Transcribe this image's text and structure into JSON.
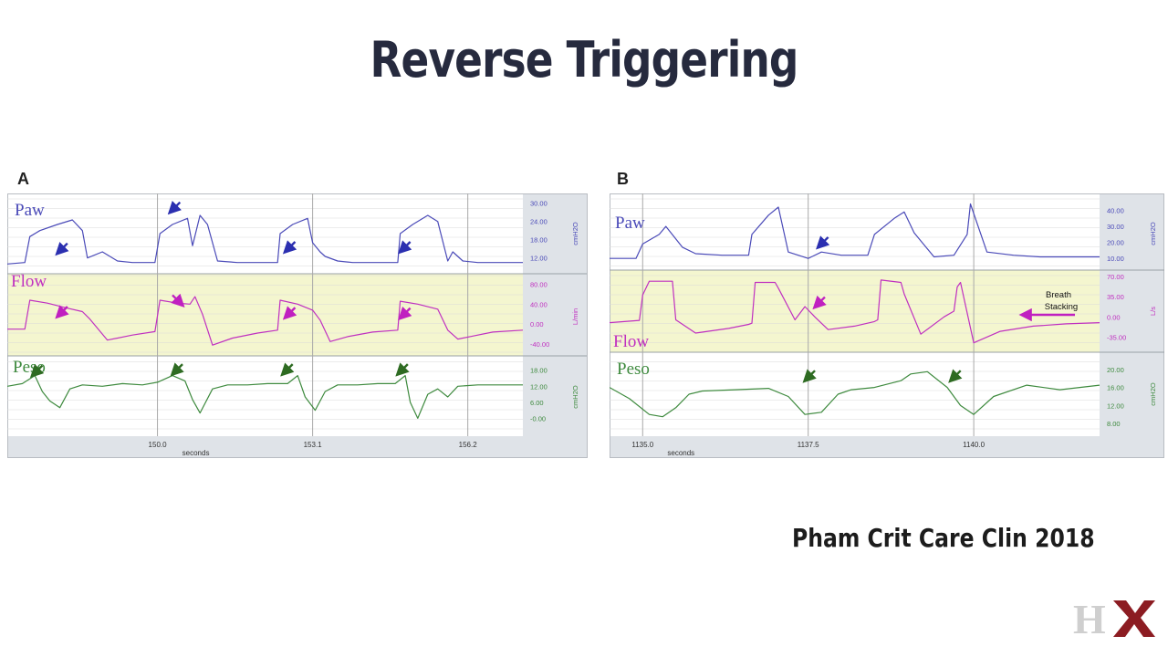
{
  "slide": {
    "title": "Reverse Triggering",
    "citation": "Pham Crit Care Clin 2018",
    "logo_text": "HX"
  },
  "colors": {
    "paw": "#4a4ab8",
    "flow": "#c030c0",
    "peso": "#3e8a3e",
    "arrow_paw": "#2b2fb0",
    "arrow_flow": "#c020c0",
    "arrow_peso": "#2e6b22",
    "flow_background": "#f4f6cf",
    "axis_panel": "#dfe3e8",
    "title": "#262a3e"
  },
  "chart_data": [
    {
      "type": "line",
      "panel": "A",
      "xlabel": "seconds",
      "x_ticks": [
        150.0,
        153.1,
        156.2
      ],
      "x_tick_labels": [
        "150.0",
        "153.1",
        "156.2"
      ],
      "series": [
        {
          "name": "Paw",
          "unit": "cmH2O",
          "ylim": [
            8,
            32
          ],
          "tick_labels": [
            "30.00",
            "24.00",
            "18.00",
            "12.00"
          ],
          "ticks": [
            30,
            24,
            18,
            12
          ],
          "x": [
            147.0,
            147.35,
            147.45,
            147.65,
            148.0,
            148.3,
            148.5,
            148.6,
            148.9,
            149.2,
            149.5,
            149.95,
            150.05,
            150.3,
            150.6,
            150.7,
            150.85,
            151.0,
            151.2,
            151.6,
            152.0,
            152.4,
            152.45,
            152.7,
            153.0,
            153.1,
            153.25,
            153.35,
            153.6,
            153.9,
            154.2,
            154.6,
            154.8,
            154.85,
            155.1,
            155.4,
            155.6,
            155.8,
            155.9,
            156.1,
            156.4,
            156.8,
            157.0,
            157.3
          ],
          "y": [
            10.0,
            10.5,
            19,
            21,
            23,
            24.5,
            21,
            12,
            14,
            11,
            10.5,
            10.5,
            20,
            23,
            25,
            16,
            26,
            23,
            11,
            10.5,
            10.5,
            10.5,
            20,
            23,
            25,
            17,
            14,
            12.5,
            11,
            10.5,
            10.5,
            10.5,
            10.5,
            20,
            23,
            26,
            24,
            11,
            14,
            11,
            10.5,
            10.5,
            10.5,
            10.5
          ],
          "arrows_at": [
            [
              148.0,
              13.5
            ],
            [
              150.25,
              27
            ],
            [
              152.55,
              14
            ],
            [
              154.85,
              14
            ]
          ]
        },
        {
          "name": "Flow",
          "unit": "L/min",
          "ylim": [
            -60,
            90
          ],
          "tick_labels": [
            "80.00",
            "40.00",
            "0.00",
            "-40.00"
          ],
          "ticks": [
            80,
            40,
            0,
            -40
          ],
          "x": [
            147.0,
            147.35,
            147.45,
            147.8,
            148.2,
            148.5,
            148.65,
            149.0,
            149.5,
            149.95,
            150.05,
            150.4,
            150.65,
            150.75,
            150.9,
            151.1,
            151.5,
            152.0,
            152.4,
            152.45,
            152.8,
            153.1,
            153.25,
            153.45,
            153.8,
            154.3,
            154.8,
            154.85,
            155.2,
            155.6,
            155.8,
            156.0,
            156.3,
            156.7,
            157.3
          ],
          "y": [
            -10,
            -10,
            48,
            42,
            32,
            25,
            10,
            -32,
            -22,
            -15,
            48,
            42,
            40,
            55,
            20,
            -42,
            -28,
            -18,
            -12,
            48,
            40,
            28,
            8,
            -35,
            -25,
            -16,
            -12,
            46,
            40,
            30,
            -12,
            -30,
            -24,
            -16,
            -12
          ],
          "arrows_at": [
            [
              148.0,
              15
            ],
            [
              150.5,
              38
            ],
            [
              152.55,
              13
            ],
            [
              154.85,
              12
            ]
          ]
        },
        {
          "name": "Peso",
          "unit": "cmH2O",
          "ylim": [
            -6,
            22
          ],
          "tick_labels": [
            "18.00",
            "12.00",
            "6.00",
            "-0.00"
          ],
          "ticks": [
            18,
            12,
            6,
            0
          ],
          "x": [
            147.0,
            147.3,
            147.55,
            147.7,
            147.85,
            148.05,
            148.25,
            148.5,
            148.9,
            149.3,
            149.7,
            150.0,
            150.3,
            150.55,
            150.7,
            150.85,
            151.1,
            151.4,
            151.8,
            152.2,
            152.6,
            152.8,
            152.95,
            153.15,
            153.35,
            153.6,
            154.0,
            154.4,
            154.75,
            154.95,
            155.05,
            155.2,
            155.4,
            155.6,
            155.8,
            156.0,
            156.4,
            156.8,
            157.3
          ],
          "y": [
            12.0,
            13.0,
            16,
            10,
            6.5,
            4,
            11,
            12.5,
            12,
            13,
            12.5,
            13.5,
            16,
            14,
            7,
            2,
            11,
            12.5,
            12.5,
            13,
            13,
            16,
            8,
            3,
            10,
            12.5,
            12.5,
            13,
            13,
            16,
            6,
            0,
            9,
            11,
            8,
            12,
            12.5,
            12.5,
            12.5
          ],
          "arrows_at": [
            [
              147.5,
              16
            ],
            [
              150.3,
              16.5
            ],
            [
              152.5,
              16.5
            ],
            [
              154.8,
              16.5
            ]
          ]
        }
      ]
    },
    {
      "type": "line",
      "panel": "B",
      "xlabel": "seconds",
      "x_ticks": [
        1135.0,
        1137.5,
        1140.0
      ],
      "x_tick_labels": [
        "1135.0",
        "1137.5",
        "1140.0"
      ],
      "annotation": "Breath Stacking",
      "series": [
        {
          "name": "Paw",
          "unit": "cmH2O",
          "ylim": [
            5,
            46
          ],
          "tick_labels": [
            "40.00",
            "30.00",
            "20.00",
            "10.00"
          ],
          "ticks": [
            40,
            30,
            20,
            10
          ],
          "x": [
            1134.5,
            1134.9,
            1135.0,
            1135.25,
            1135.35,
            1135.6,
            1135.8,
            1136.2,
            1136.6,
            1136.65,
            1136.9,
            1137.05,
            1137.2,
            1137.5,
            1137.7,
            1138.0,
            1138.4,
            1138.5,
            1138.8,
            1138.95,
            1139.1,
            1139.4,
            1139.7,
            1139.9,
            1139.95,
            1140.2,
            1140.6,
            1141.0,
            1141.5,
            1141.9
          ],
          "y": [
            10,
            10,
            19,
            25,
            30,
            17,
            13,
            12,
            12,
            25,
            37,
            42,
            14,
            10,
            14,
            12,
            12,
            25,
            35,
            39,
            26,
            11,
            12,
            25,
            44,
            14,
            12,
            11,
            11,
            11
          ],
          "arrows_at": [
            [
              1137.65,
              17
            ]
          ]
        },
        {
          "name": "Flow",
          "unit": "L/s",
          "ylim": [
            -55,
            75
          ],
          "tick_labels": [
            "70.00",
            "35.00",
            "0.00",
            "-35.00"
          ],
          "ticks": [
            70,
            35,
            0,
            -35
          ],
          "x": [
            1134.5,
            1134.95,
            1135.0,
            1135.1,
            1135.45,
            1135.5,
            1135.8,
            1136.3,
            1136.6,
            1136.65,
            1136.7,
            1137.0,
            1137.05,
            1137.3,
            1137.45,
            1137.6,
            1137.8,
            1138.2,
            1138.5,
            1138.55,
            1138.6,
            1138.9,
            1138.95,
            1139.2,
            1139.55,
            1139.7,
            1139.75,
            1139.8,
            1140.0,
            1140.4,
            1140.9,
            1141.4,
            1141.9
          ],
          "y": [
            -10,
            -6,
            38,
            62,
            62,
            -5,
            -28,
            -20,
            -13,
            -11,
            60,
            60,
            50,
            -5,
            18,
            0,
            -22,
            -16,
            -8,
            -5,
            64,
            60,
            40,
            -30,
            0,
            10,
            52,
            60,
            -45,
            -25,
            -16,
            -12,
            -10
          ],
          "arrows_at": [
            [
              1137.6,
              17
            ]
          ]
        },
        {
          "name": "Peso",
          "unit": "cmH2O",
          "ylim": [
            6,
            23
          ],
          "tick_labels": [
            "20.00",
            "16.00",
            "12.00",
            "8.00"
          ],
          "ticks": [
            20,
            16,
            12,
            8
          ],
          "x": [
            1134.5,
            1134.8,
            1135.1,
            1135.3,
            1135.5,
            1135.7,
            1135.9,
            1136.4,
            1136.9,
            1137.2,
            1137.45,
            1137.7,
            1137.95,
            1138.15,
            1138.5,
            1138.9,
            1139.05,
            1139.3,
            1139.6,
            1139.8,
            1140.0,
            1140.3,
            1140.8,
            1141.3,
            1141.9
          ],
          "y": [
            16,
            13.5,
            10,
            9.5,
            11.5,
            14.5,
            15.2,
            15.5,
            15.8,
            14,
            10,
            10.5,
            14.5,
            15.5,
            16,
            17.5,
            19,
            19.5,
            16,
            12,
            10,
            14,
            16.5,
            15.5,
            16.5
          ],
          "arrows_at": [
            [
              1137.45,
              17.5
            ],
            [
              1139.65,
              17.5
            ]
          ]
        }
      ]
    }
  ]
}
